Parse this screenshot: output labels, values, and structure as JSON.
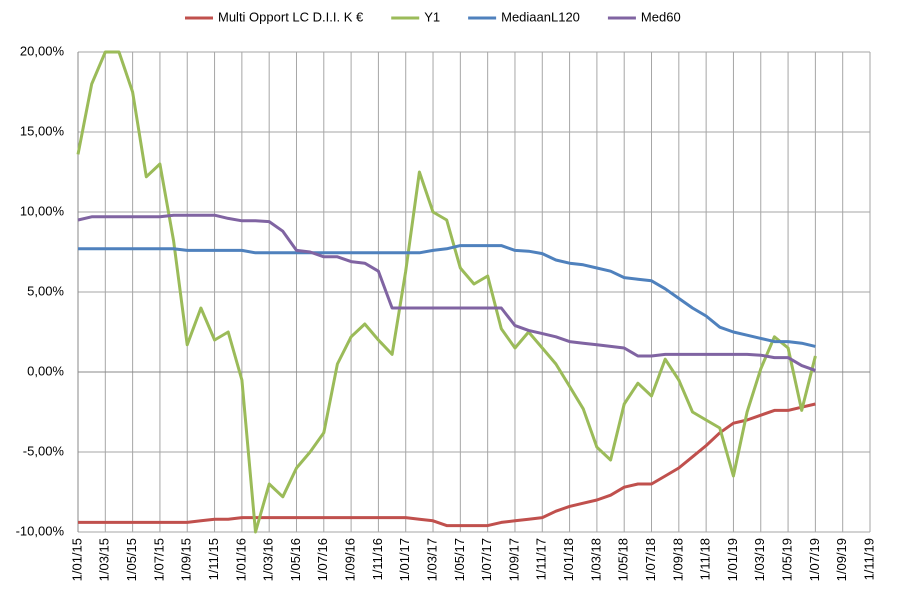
{
  "chart_data": {
    "type": "line",
    "x": [
      "1/01/15",
      "1/02/15",
      "1/03/15",
      "1/04/15",
      "1/05/15",
      "1/06/15",
      "1/07/15",
      "1/08/15",
      "1/09/15",
      "1/10/15",
      "1/11/15",
      "1/12/15",
      "1/01/16",
      "1/02/16",
      "1/03/16",
      "1/04/16",
      "1/05/16",
      "1/06/16",
      "1/07/16",
      "1/08/16",
      "1/09/16",
      "1/10/16",
      "1/11/16",
      "1/12/16",
      "1/01/17",
      "1/02/17",
      "1/03/17",
      "1/04/17",
      "1/05/17",
      "1/06/17",
      "1/07/17",
      "1/08/17",
      "1/09/17",
      "1/10/17",
      "1/11/17",
      "1/12/17",
      "1/01/18",
      "1/02/18",
      "1/03/18",
      "1/04/18",
      "1/05/18",
      "1/06/18",
      "1/07/18",
      "1/08/18",
      "1/09/18",
      "1/10/18",
      "1/11/18",
      "1/12/18",
      "1/01/19",
      "1/02/19",
      "1/03/19",
      "1/04/19",
      "1/05/19",
      "1/06/19",
      "1/07/19"
    ],
    "series": [
      {
        "name": "Multi Opport LC D.I.I. K €",
        "color": "#c0504d",
        "values": [
          -9.4,
          -9.4,
          -9.4,
          -9.4,
          -9.4,
          -9.4,
          -9.4,
          -9.4,
          -9.4,
          -9.3,
          -9.2,
          -9.2,
          -9.1,
          -9.1,
          -9.1,
          -9.1,
          -9.1,
          -9.1,
          -9.1,
          -9.1,
          -9.1,
          -9.1,
          -9.1,
          -9.1,
          -9.1,
          -9.2,
          -9.3,
          -9.6,
          -9.6,
          -9.6,
          -9.6,
          -9.4,
          -9.3,
          -9.2,
          -9.1,
          -8.7,
          -8.4,
          -8.2,
          -8.0,
          -7.7,
          -7.2,
          -7.0,
          -7.0,
          -6.5,
          -6.0,
          -5.3,
          -4.6,
          -3.8,
          -3.2,
          -3.0,
          -2.7,
          -2.4,
          -2.4,
          -2.2,
          -2.0
        ]
      },
      {
        "name": "Y1",
        "color": "#9bbb59",
        "values": [
          13.6,
          18,
          20,
          20,
          17.5,
          12.2,
          13,
          8.2,
          1.7,
          4,
          2,
          2.5,
          -0.5,
          -10,
          -7,
          -7.8,
          -6,
          -5,
          -3.8,
          0.5,
          2.2,
          3,
          2,
          1.1,
          6.3,
          12.5,
          10,
          9.5,
          6.5,
          5.5,
          6,
          2.7,
          1.5,
          2.5,
          1.5,
          0.5,
          -0.9,
          -2.3,
          -4.7,
          -5.5,
          -2,
          -0.7,
          -1.5,
          0.8,
          -0.5,
          -2.5,
          -3,
          -3.5,
          -6.5,
          -2.5,
          0.2,
          2.2,
          1.5,
          -2.4,
          1.0
        ]
      },
      {
        "name": "MediaanL120",
        "color": "#4f81bd",
        "values": [
          7.7,
          7.7,
          7.7,
          7.7,
          7.7,
          7.7,
          7.7,
          7.7,
          7.6,
          7.6,
          7.6,
          7.6,
          7.6,
          7.45,
          7.45,
          7.45,
          7.45,
          7.45,
          7.45,
          7.45,
          7.45,
          7.45,
          7.45,
          7.45,
          7.45,
          7.45,
          7.6,
          7.7,
          7.9,
          7.9,
          7.9,
          7.9,
          7.6,
          7.55,
          7.4,
          7.0,
          6.8,
          6.7,
          6.5,
          6.3,
          5.9,
          5.8,
          5.7,
          5.2,
          4.6,
          4.0,
          3.5,
          2.8,
          2.5,
          2.3,
          2.1,
          1.9,
          1.9,
          1.8,
          1.6
        ]
      },
      {
        "name": "Med60",
        "color": "#8064a2",
        "values": [
          9.5,
          9.7,
          9.7,
          9.7,
          9.7,
          9.7,
          9.7,
          9.8,
          9.8,
          9.8,
          9.8,
          9.6,
          9.45,
          9.45,
          9.4,
          8.8,
          7.6,
          7.5,
          7.2,
          7.2,
          6.9,
          6.8,
          6.3,
          4.0,
          4.0,
          4.0,
          4.0,
          4.0,
          4.0,
          4.0,
          4.0,
          4.0,
          2.9,
          2.6,
          2.4,
          2.2,
          1.9,
          1.8,
          1.7,
          1.6,
          1.5,
          1.0,
          1.0,
          1.1,
          1.1,
          1.1,
          1.1,
          1.1,
          1.1,
          1.1,
          1.05,
          0.9,
          0.9,
          0.4,
          0.1
        ]
      }
    ],
    "xlim": [
      "1/01/15",
      "1/11/19"
    ],
    "xticks": [
      "1/01/15",
      "1/03/15",
      "1/05/15",
      "1/07/15",
      "1/09/15",
      "1/11/15",
      "1/01/16",
      "1/03/16",
      "1/05/16",
      "1/07/16",
      "1/09/16",
      "1/11/16",
      "1/01/17",
      "1/03/17",
      "1/05/17",
      "1/07/17",
      "1/09/17",
      "1/11/17",
      "1/01/18",
      "1/03/18",
      "1/05/18",
      "1/07/18",
      "1/09/18",
      "1/11/18",
      "1/01/19",
      "1/03/19",
      "1/05/19",
      "1/07/19",
      "1/09/19",
      "1/11/19"
    ],
    "ylim": [
      -10,
      20
    ],
    "yticks": [
      {
        "value": -10,
        "label": "-10,00%"
      },
      {
        "value": -5,
        "label": "-5,00%"
      },
      {
        "value": 0,
        "label": "0,00%"
      },
      {
        "value": 5,
        "label": "5,00%"
      },
      {
        "value": 10,
        "label": "10,00%"
      },
      {
        "value": 15,
        "label": "15,00%"
      },
      {
        "value": 20,
        "label": "20,00%"
      }
    ],
    "grid": true,
    "legend": "top"
  }
}
